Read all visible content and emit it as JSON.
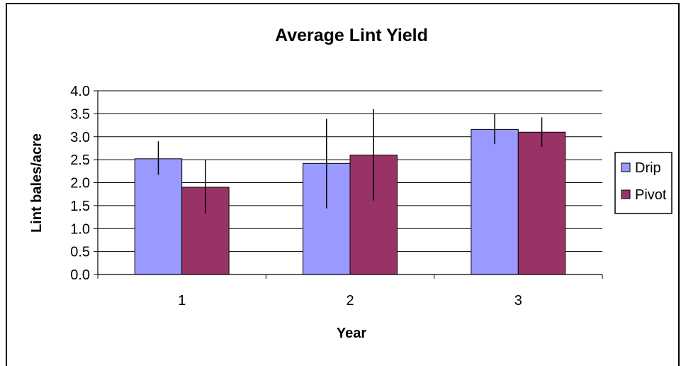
{
  "chart_data": {
    "type": "bar",
    "title": "Average Lint Yield",
    "xlabel": "Year",
    "ylabel": "Lint bales/acre",
    "categories": [
      "1",
      "2",
      "3"
    ],
    "series": [
      {
        "name": "Drip",
        "color": "#9999ff",
        "values": [
          2.52,
          2.42,
          3.16
        ],
        "error_low": [
          2.17,
          1.44,
          2.84
        ],
        "error_high": [
          2.9,
          3.39,
          3.5
        ]
      },
      {
        "name": "Pivot",
        "color": "#993366",
        "values": [
          1.9,
          2.6,
          3.1
        ],
        "error_low": [
          1.33,
          1.61,
          2.78
        ],
        "error_high": [
          2.49,
          3.6,
          3.42
        ]
      }
    ],
    "ylim": [
      0,
      4
    ],
    "yticks": [
      "0.0",
      "0.5",
      "1.0",
      "1.5",
      "2.0",
      "2.5",
      "3.0",
      "3.5",
      "4.0"
    ],
    "grid": true,
    "legend_position": "right"
  }
}
